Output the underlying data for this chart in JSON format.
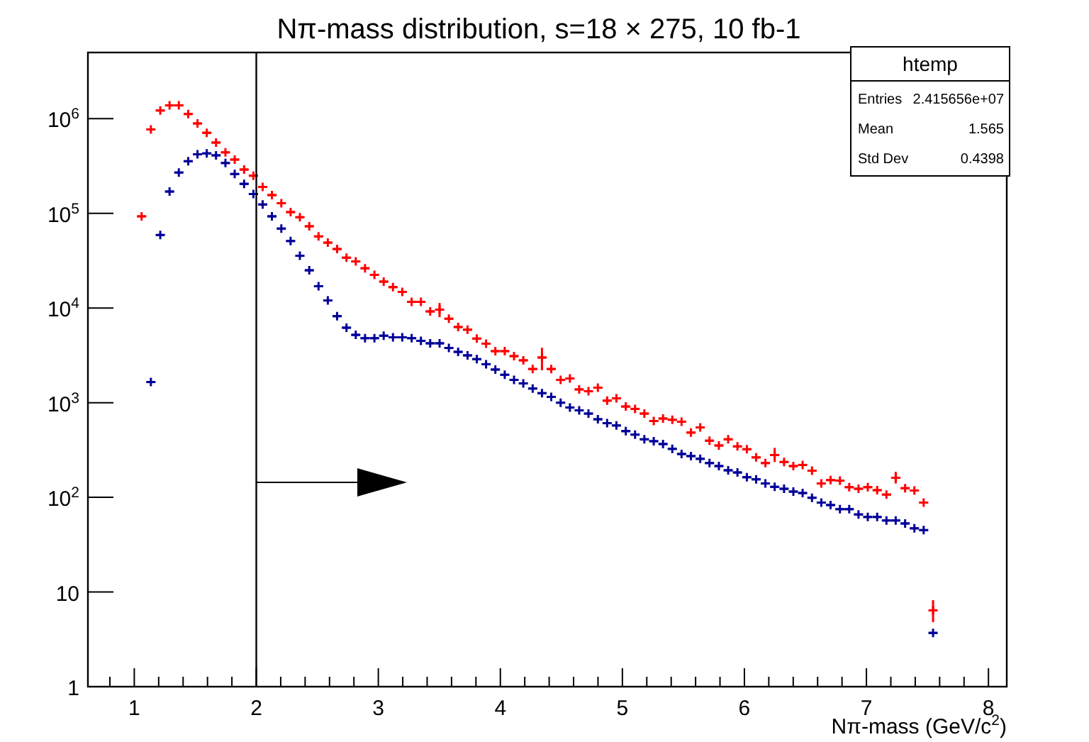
{
  "chart_data": {
    "type": "scatter",
    "title": "Nπ-mass distribution, s=18 × 275, 10 fb-1",
    "xlabel": "Nπ-mass (GeV/c$^{2}$)",
    "annotations": [
      "htemp",
      "Entries",
      "2.415656e+07",
      "Mean",
      "1.565",
      "Std Dev",
      "0.4398"
    ],
    "log": "y",
    "marker": "cross",
    "xlim": [
      0.62,
      8.15
    ],
    "ylim": [
      1,
      5000000
    ],
    "xticks": [
      {
        "value": 0.8,
        "label": null
      },
      1,
      {
        "value": 1.2,
        "label": null
      },
      {
        "value": 1.4,
        "label": null
      },
      {
        "value": 1.6,
        "label": null
      },
      {
        "value": 1.8,
        "label": null
      },
      2,
      {
        "value": 2.2,
        "label": null
      },
      {
        "value": 2.4,
        "label": null
      },
      {
        "value": 2.6,
        "label": null
      },
      {
        "value": 2.8,
        "label": null
      },
      3,
      {
        "value": 3.2,
        "label": null
      },
      {
        "value": 3.4,
        "label": null
      },
      {
        "value": 3.6,
        "label": null
      },
      {
        "value": 3.8,
        "label": null
      },
      4,
      {
        "value": 4.2,
        "label": null
      },
      {
        "value": 4.4,
        "label": null
      },
      {
        "value": 4.6,
        "label": null
      },
      {
        "value": 4.8,
        "label": null
      },
      5,
      {
        "value": 5.2,
        "label": null
      },
      {
        "value": 5.4,
        "label": null
      },
      {
        "value": 5.6,
        "label": null
      },
      {
        "value": 5.8,
        "label": null
      },
      6,
      {
        "value": 6.2,
        "label": null
      },
      {
        "value": 6.4,
        "label": null
      },
      {
        "value": 6.6,
        "label": null
      },
      {
        "value": 6.8,
        "label": null
      },
      7,
      {
        "value": 7.2,
        "label": null
      },
      {
        "value": 7.4,
        "label": null
      },
      {
        "value": 7.6,
        "label": null
      },
      {
        "value": 7.8,
        "label": null
      },
      8
    ],
    "yticks": [
      1,
      10,
      {
        "value": 100,
        "label": "10$^{2}$"
      },
      {
        "value": 1000,
        "label": "10$^{3}$"
      },
      {
        "value": 10000,
        "label": "10$^{4}$"
      },
      {
        "value": 100000,
        "label": "10$^{5}$"
      },
      {
        "value": 1000000,
        "label": "10$^{6}$"
      }
    ],
    "ref_lines": [
      {
        "axis": "x",
        "value": 2,
        "color": "#000000"
      }
    ],
    "x": [
      1.06,
      1.136,
      1.213,
      1.289,
      1.365,
      1.442,
      1.518,
      1.594,
      1.67,
      1.747,
      1.823,
      1.9,
      1.976,
      2.052,
      2.128,
      2.205,
      2.281,
      2.357,
      2.434,
      2.51,
      2.586,
      2.662,
      2.739,
      2.815,
      2.891,
      2.968,
      3.044,
      3.12,
      3.196,
      3.273,
      3.349,
      3.425,
      3.502,
      3.578,
      3.654,
      3.731,
      3.807,
      3.883,
      3.959,
      4.036,
      4.112,
      4.188,
      4.265,
      4.341,
      4.417,
      4.494,
      4.57,
      4.646,
      4.722,
      4.799,
      4.875,
      4.951,
      5.028,
      5.104,
      5.18,
      5.257,
      5.333,
      5.409,
      5.485,
      5.562,
      5.638,
      5.714,
      5.791,
      5.867,
      5.943,
      6.02,
      6.096,
      6.172,
      6.248,
      6.325,
      6.401,
      6.477,
      6.554,
      6.63,
      6.706,
      6.783,
      6.859,
      6.935,
      7.011,
      7.088,
      7.164,
      7.24,
      7.317,
      7.393,
      7.469,
      7.546
    ],
    "series": [
      {
        "color": "#ff0000",
        "values": [
          93000,
          770000,
          1220000,
          1380000,
          1380000,
          1120000,
          890000,
          710000,
          560000,
          440000,
          370000,
          290000,
          250000,
          190000,
          156000,
          128000,
          103000,
          91000,
          73000,
          57000,
          49000,
          42000,
          34000,
          31000,
          26300,
          22400,
          19000,
          16600,
          14800,
          11600,
          11600,
          9200,
          9600,
          7700,
          6300,
          5900,
          4750,
          4200,
          3500,
          3500,
          3100,
          2800,
          2270,
          3000,
          2270,
          1740,
          1800,
          1380,
          1320,
          1440,
          1050,
          1110,
          910,
          860,
          766,
          640,
          680,
          660,
          630,
          483,
          547,
          397,
          353,
          410,
          345,
          322,
          264,
          230,
          280,
          236,
          214,
          220,
          191,
          140,
          152,
          150,
          128,
          123,
          128,
          119,
          107,
          161,
          125,
          118,
          88,
          6.4
        ],
        "xerrors": [
          0.038,
          0.038,
          0.038,
          0.038,
          0.038,
          0.038,
          0.038,
          0.038,
          0.038,
          0.038,
          0.038,
          0.038,
          0.038,
          0.038,
          0.038,
          0.038,
          0.038,
          0.038,
          0.038,
          0.038,
          0.038,
          0.038,
          0.038,
          0.038,
          0.038,
          0.038,
          0.038,
          0.038,
          0.038,
          0.038,
          0.038,
          0.038,
          0.038,
          0.038,
          0.038,
          0.038,
          0.038,
          0.038,
          0.038,
          0.038,
          0.038,
          0.038,
          0.038,
          0.038,
          0.038,
          0.038,
          0.038,
          0.038,
          0.038,
          0.038,
          0.038,
          0.038,
          0.038,
          0.038,
          0.038,
          0.038,
          0.038,
          0.038,
          0.038,
          0.038,
          0.038,
          0.038,
          0.038,
          0.038,
          0.038,
          0.038,
          0.038,
          0.038,
          0.038,
          0.038,
          0.038,
          0.038,
          0.038,
          0.038,
          0.038,
          0.038,
          0.038,
          0.038,
          0.038,
          0.038,
          0.038,
          0.038,
          0.038,
          0.038,
          0.038,
          0.038
        ],
        "errors": [
          null,
          null,
          null,
          null,
          null,
          null,
          null,
          null,
          null,
          null,
          null,
          null,
          null,
          null,
          null,
          null,
          null,
          null,
          null,
          null,
          null,
          null,
          null,
          null,
          null,
          null,
          null,
          null,
          null,
          null,
          null,
          null,
          [
            8000,
            11300
          ],
          null,
          null,
          null,
          null,
          null,
          null,
          null,
          null,
          null,
          null,
          [
            2200,
            3800
          ],
          null,
          null,
          null,
          null,
          null,
          null,
          null,
          null,
          null,
          null,
          null,
          null,
          null,
          null,
          null,
          null,
          null,
          null,
          null,
          null,
          null,
          null,
          null,
          null,
          [
            236,
            333
          ],
          null,
          null,
          null,
          null,
          null,
          null,
          null,
          null,
          null,
          null,
          null,
          null,
          [
            140,
            186
          ],
          null,
          null,
          null,
          [
            4.8,
            8.2
          ]
        ]
      },
      {
        "color": "#000099",
        "values": [
          null,
          1650,
          59000,
          170000,
          270000,
          355000,
          420000,
          430000,
          410000,
          340000,
          260000,
          205000,
          160000,
          124000,
          93000,
          69000,
          51000,
          35600,
          25000,
          17000,
          12000,
          8200,
          6200,
          5200,
          4800,
          4800,
          5100,
          4900,
          4900,
          4800,
          4500,
          4240,
          4240,
          3780,
          3440,
          3160,
          2880,
          2550,
          2240,
          1970,
          1740,
          1600,
          1410,
          1260,
          1150,
          1000,
          890,
          830,
          766,
          667,
          607,
          574,
          500,
          460,
          410,
          392,
          366,
          325,
          287,
          273,
          255,
          230,
          214,
          193,
          183,
          163,
          155,
          140,
          129,
          123,
          115,
          111,
          99,
          88,
          83,
          75,
          75,
          66,
          62,
          62,
          57,
          57,
          53,
          47,
          45,
          3.7
        ],
        "xerrors": [
          null,
          0.038,
          0.038,
          0.038,
          0.038,
          0.038,
          0.038,
          0.038,
          0.038,
          0.038,
          0.038,
          0.038,
          0.038,
          0.038,
          0.038,
          0.038,
          0.038,
          0.038,
          0.038,
          0.038,
          0.038,
          0.038,
          0.038,
          0.038,
          0.038,
          0.038,
          0.038,
          0.038,
          0.038,
          0.038,
          0.038,
          0.038,
          0.038,
          0.038,
          0.038,
          0.038,
          0.038,
          0.038,
          0.038,
          0.038,
          0.038,
          0.038,
          0.038,
          0.038,
          0.038,
          0.038,
          0.038,
          0.038,
          0.038,
          0.038,
          0.038,
          0.038,
          0.038,
          0.038,
          0.038,
          0.038,
          0.038,
          0.038,
          0.038,
          0.038,
          0.038,
          0.038,
          0.038,
          0.038,
          0.038,
          0.038,
          0.038,
          0.038,
          0.038,
          0.038,
          0.038,
          0.038,
          0.038,
          0.038,
          0.038,
          0.038,
          0.038,
          0.038,
          0.038,
          0.038,
          0.038,
          0.038,
          0.038,
          0.038,
          0.038,
          0.038
        ]
      }
    ]
  }
}
